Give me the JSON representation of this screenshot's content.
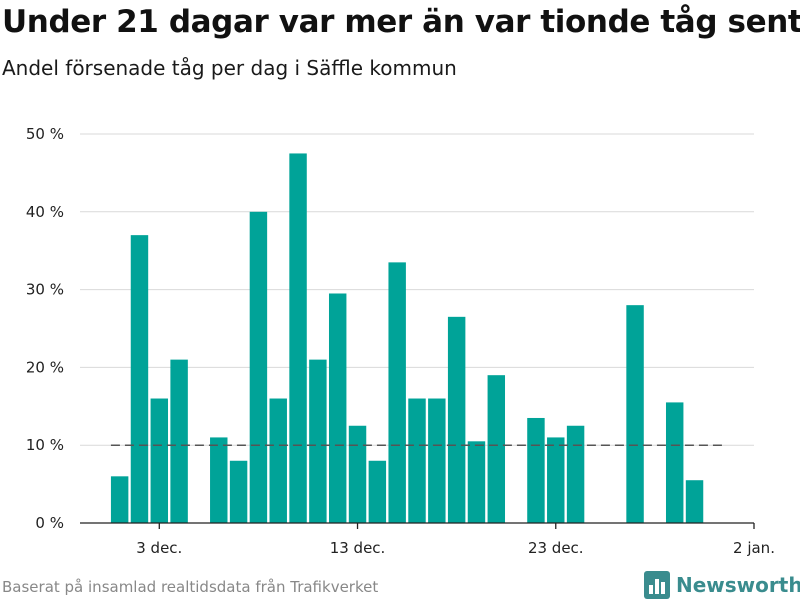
{
  "title": "Under 21 dagar var mer än var tionde tåg sent",
  "subtitle": "Andel försenade tåg per dag i Säffle kommun",
  "source": "Baserat på insamlad realtidsdata från Trafikverket",
  "brand": {
    "name": "Newsworthy",
    "icon": "bar-chart-logo-icon",
    "color": "#3a8c8e"
  },
  "chart_data": {
    "type": "bar",
    "title": "Under 21 dagar var mer än var tionde tåg sent",
    "subtitle": "Andel försenade tåg per dag i Säffle kommun",
    "x_start": "2023-12-01",
    "x_range": [
      "2023-11-29",
      "2024-01-02"
    ],
    "x_ticks": [
      {
        "date": "2023-12-03",
        "label": "3 dec."
      },
      {
        "date": "2023-12-13",
        "label": "13 dec."
      },
      {
        "date": "2023-12-23",
        "label": "23 dec."
      },
      {
        "date": "2024-01-02",
        "label": "2 jan."
      }
    ],
    "values": [
      6,
      37,
      16,
      21,
      null,
      11,
      8,
      40,
      16,
      47.5,
      21,
      29.5,
      12.5,
      8,
      33.5,
      16,
      16,
      26.5,
      10.5,
      19,
      null,
      13.5,
      11,
      12.5,
      null,
      null,
      28,
      null,
      15.5,
      5.5
    ],
    "reference_line": {
      "value": 10,
      "style": "dashed"
    },
    "ylim": [
      0,
      50
    ],
    "y_ticks": [
      {
        "value": 0,
        "label": "0 %"
      },
      {
        "value": 10,
        "label": "10 %"
      },
      {
        "value": 20,
        "label": "20 %"
      },
      {
        "value": 30,
        "label": "30 %"
      },
      {
        "value": 40,
        "label": "40 %"
      },
      {
        "value": 50,
        "label": "50 %"
      }
    ],
    "xlabel": "",
    "ylabel": "",
    "grid": true,
    "bar_color": "#00a398",
    "reference_color": "#555555"
  }
}
